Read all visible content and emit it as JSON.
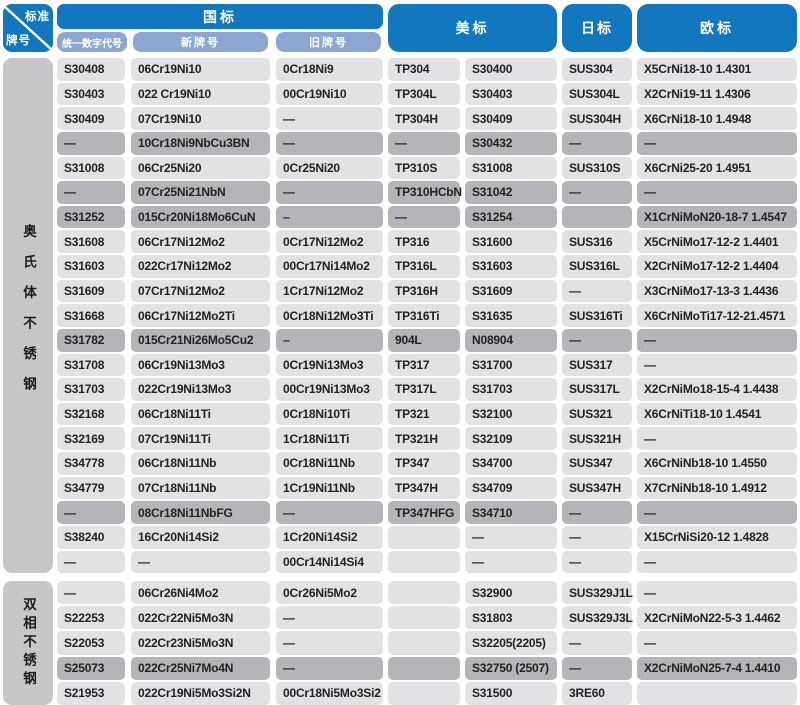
{
  "colors": {
    "header_blue": "#1277bd",
    "subheader_blue": "#8da6d3",
    "row_light": "#e2e2e4",
    "row_dark": "#b4b5b8",
    "label_gray": "#c6c7c9",
    "text": "#222222"
  },
  "header": {
    "corner": {
      "top": "标准",
      "bottom": "牌号"
    },
    "gb": {
      "label": "国标",
      "sub": [
        "统一数字代号",
        "新牌号",
        "旧牌号"
      ]
    },
    "us": {
      "label": "美标"
    },
    "jp": {
      "label": "日标"
    },
    "eu": {
      "label": "欧标"
    }
  },
  "sections": [
    {
      "label": "奥氏体不锈钢",
      "rows": [
        {
          "dark": false,
          "cells": [
            "S30408",
            "06Cr19Ni10",
            "0Cr18Ni9",
            "TP304",
            "S30400",
            "SUS304",
            "X5CrNi18-10 1.4301"
          ]
        },
        {
          "dark": false,
          "cells": [
            "S30403",
            "022 Cr19Ni10",
            "00Cr19Ni10",
            "TP304L",
            "S30403",
            "SUS304L",
            "X2CrNi19-11 1.4306"
          ]
        },
        {
          "dark": false,
          "cells": [
            "S30409",
            "07Cr19Ni10",
            "—",
            "TP304H",
            "S30409",
            "SUS304H",
            "X6CrNi18-10 1.4948"
          ]
        },
        {
          "dark": true,
          "cells": [
            "—",
            "10Cr18Ni9NbCu3BN",
            "—",
            "—",
            "S30432",
            "—",
            "—"
          ]
        },
        {
          "dark": false,
          "cells": [
            "S31008",
            "06Cr25Ni20",
            "0Cr25Ni20",
            "TP310S",
            "S31008",
            "SUS310S",
            "X6CrNi25-20 1.4951"
          ]
        },
        {
          "dark": true,
          "cells": [
            "—",
            "07Cr25Ni21NbN",
            "—",
            "TP310HCbN",
            "S31042",
            "—",
            "—"
          ]
        },
        {
          "dark": true,
          "cells": [
            "S31252",
            "015Cr20Ni18Mo6CuN",
            "–",
            "—",
            "S31254",
            "",
            "X1CrNiMoN20-18-7 1.4547"
          ]
        },
        {
          "dark": false,
          "cells": [
            "S31608",
            "06Cr17Ni12Mo2",
            "0Cr17Ni12Mo2",
            "TP316",
            "S31600",
            "SUS316",
            "X5CrNiMo17-12-2 1.4401"
          ]
        },
        {
          "dark": false,
          "cells": [
            "S31603",
            "022Cr17Ni12Mo2",
            "00Cr17Ni14Mo2",
            "TP316L",
            "S31603",
            "SUS316L",
            "X2CrNiMo17-12-2 1.4404"
          ]
        },
        {
          "dark": false,
          "cells": [
            "S31609",
            "07Cr17Ni12Mo2",
            "1Cr17Ni12Mo2",
            "TP316H",
            "S31609",
            "—",
            "X3CrNiMo17-13-3 1.4436"
          ]
        },
        {
          "dark": false,
          "cells": [
            "S31668",
            "06Cr17Ni12Mo2Ti",
            "0Cr18Ni12Mo3Ti",
            "TP316Ti",
            "S31635",
            "SUS316Ti",
            "X6CrNiMoTi17-12-21.4571"
          ]
        },
        {
          "dark": true,
          "cells": [
            "S31782",
            "015Cr21Ni26Mo5Cu2",
            "–",
            "904L",
            "N08904",
            "—",
            "—"
          ]
        },
        {
          "dark": false,
          "cells": [
            "S31708",
            "06Cr19Ni13Mo3",
            "0Cr19Ni13Mo3",
            "TP317",
            "S31700",
            "SUS317",
            "—"
          ]
        },
        {
          "dark": false,
          "cells": [
            "S31703",
            "022Cr19Ni13Mo3",
            "00Cr19Ni13Mo3",
            "TP317L",
            "S31703",
            "SUS317L",
            "X2CrNiMo18-15-4 1.4438"
          ]
        },
        {
          "dark": false,
          "cells": [
            "S32168",
            "06Cr18Ni11Ti",
            "0Cr18Ni10Ti",
            "TP321",
            "S32100",
            "SUS321",
            "X6CrNiTi18-10 1.4541"
          ]
        },
        {
          "dark": false,
          "cells": [
            "S32169",
            "07Cr19Ni11Ti",
            "1Cr18Ni11Ti",
            "TP321H",
            "S32109",
            "SUS321H",
            "—"
          ]
        },
        {
          "dark": false,
          "cells": [
            "S34778",
            "06Cr18Ni11Nb",
            "0Cr18Ni11Nb",
            "TP347",
            "S34700",
            "SUS347",
            "X6CrNiNb18-10 1.4550"
          ]
        },
        {
          "dark": false,
          "cells": [
            "S34779",
            "07Cr18Ni11Nb",
            "1Cr19Ni11Nb",
            "TP347H",
            "S34709",
            "SUS347H",
            "X7CrNiNb18-10 1.4912"
          ]
        },
        {
          "dark": true,
          "cells": [
            "—",
            "08Cr18Ni11NbFG",
            "—",
            "TP347HFG",
            "S34710",
            "—",
            "—"
          ]
        },
        {
          "dark": false,
          "cells": [
            "S38240",
            "16Cr20Ni14Si2",
            "1Cr20Ni14Si2",
            "",
            "—",
            "—",
            "X15CrNiSi20-12 1.4828"
          ]
        },
        {
          "dark": false,
          "cells": [
            "—",
            "—",
            "00Cr14Ni14Si4",
            "",
            "—",
            "—",
            "—"
          ]
        }
      ]
    },
    {
      "label": "双相不锈钢",
      "rows": [
        {
          "dark": false,
          "cells": [
            "—",
            "06Cr26Ni4Mo2",
            "0Cr26Ni5Mo2",
            "",
            "S32900",
            "SUS329J1L",
            "—"
          ]
        },
        {
          "dark": false,
          "cells": [
            "S22253",
            "022Cr22Ni5Mo3N",
            "—",
            "",
            "S31803",
            "SUS329J3L",
            "X2CrNiMoN22-5-3 1.4462"
          ]
        },
        {
          "dark": false,
          "cells": [
            "S22053",
            "022Cr23Ni5Mo3N",
            "—",
            "",
            "S32205(2205)",
            "—",
            "—"
          ]
        },
        {
          "dark": true,
          "cells": [
            "S25073",
            "022Cr25Ni7Mo4N",
            "—",
            "",
            "S32750 (2507)",
            "—",
            "X2CrNiMoN25-7-4 1.4410"
          ]
        },
        {
          "dark": false,
          "cells": [
            "S21953",
            "022Cr19Ni5Mo3Si2N",
            "00Cr18Ni5Mo3Si2",
            "",
            "S31500",
            "3RE60",
            ""
          ]
        }
      ]
    }
  ]
}
